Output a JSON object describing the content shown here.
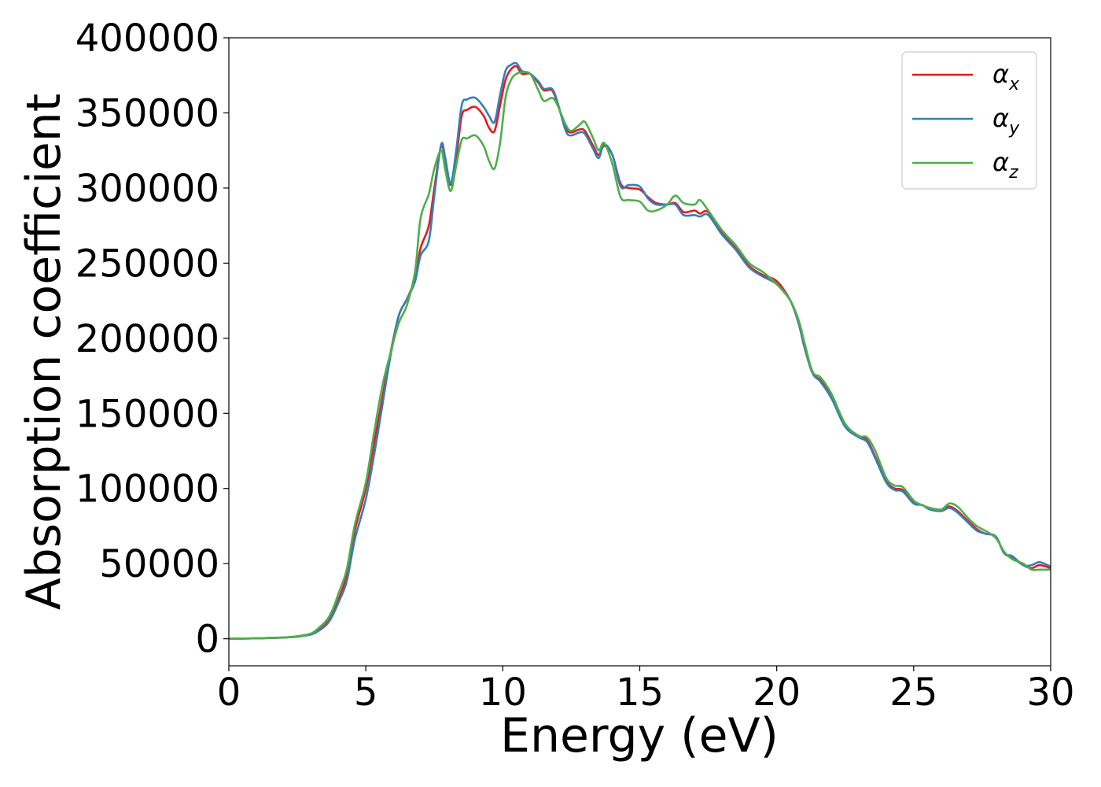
{
  "chart_data": {
    "type": "line",
    "xlabel": "Energy (eV)",
    "ylabel": "Absorption coefficient",
    "xlim": [
      0,
      30
    ],
    "ylim": [
      -18000,
      400000
    ],
    "xticks": [
      0,
      5,
      10,
      15,
      20,
      25,
      30
    ],
    "yticks": [
      0,
      50000,
      100000,
      150000,
      200000,
      250000,
      300000,
      350000,
      400000
    ],
    "grid": false,
    "legend_position": "top-right",
    "series": [
      {
        "name": "α_x",
        "label_base": "α",
        "label_sub": "x",
        "color": "#e41a1c",
        "x": [
          0,
          1,
          2,
          2.5,
          3,
          3.3,
          3.6,
          3.8,
          4.0,
          4.3,
          4.6,
          5.0,
          5.3,
          5.6,
          5.9,
          6.2,
          6.5,
          6.8,
          7.0,
          7.3,
          7.5,
          7.75,
          7.9,
          8.1,
          8.3,
          8.5,
          8.7,
          9.0,
          9.3,
          9.5,
          9.7,
          9.9,
          10.1,
          10.3,
          10.5,
          10.7,
          11.0,
          11.3,
          11.5,
          11.8,
          12.0,
          12.3,
          12.5,
          12.8,
          13.0,
          13.3,
          13.5,
          13.7,
          14.0,
          14.3,
          14.6,
          15.0,
          15.3,
          15.6,
          16.0,
          16.3,
          16.6,
          17.0,
          17.2,
          17.5,
          18.0,
          18.5,
          19.0,
          19.5,
          20.0,
          20.5,
          20.8,
          21.0,
          21.3,
          21.6,
          22.0,
          22.5,
          23.0,
          23.3,
          23.6,
          24.0,
          24.3,
          24.6,
          25.0,
          25.3,
          25.6,
          26.0,
          26.3,
          26.6,
          27.0,
          27.3,
          27.6,
          28.0,
          28.3,
          28.6,
          29.0,
          29.3,
          29.6,
          30.0
        ],
        "y": [
          0,
          300,
          800,
          1500,
          3000,
          6000,
          11000,
          17000,
          26000,
          42000,
          72000,
          100000,
          130000,
          160000,
          190000,
          215000,
          226000,
          240000,
          260000,
          275000,
          300000,
          328000,
          318000,
          302000,
          320000,
          348000,
          352000,
          354000,
          348000,
          340000,
          338000,
          355000,
          372000,
          379000,
          381000,
          376000,
          376000,
          370000,
          365000,
          365000,
          356000,
          340000,
          337000,
          339000,
          338000,
          328000,
          322000,
          328000,
          322000,
          303000,
          300000,
          299000,
          294000,
          290000,
          289000,
          290000,
          284000,
          285000,
          283000,
          284000,
          270000,
          260000,
          248000,
          242000,
          238000,
          225000,
          210000,
          195000,
          177000,
          172000,
          161000,
          142000,
          135000,
          132000,
          121000,
          105000,
          100000,
          99000,
          91000,
          89000,
          87000,
          86000,
          88000,
          85000,
          78000,
          73000,
          70000,
          68000,
          57000,
          54000,
          49000,
          47000,
          49000,
          47000
        ]
      },
      {
        "name": "α_y",
        "label_base": "α",
        "label_sub": "y",
        "color": "#377eb8",
        "x": [
          0,
          1,
          2,
          2.5,
          3,
          3.3,
          3.6,
          3.8,
          4.0,
          4.3,
          4.6,
          5.0,
          5.3,
          5.6,
          5.9,
          6.2,
          6.5,
          6.8,
          7.0,
          7.3,
          7.5,
          7.75,
          7.9,
          8.1,
          8.3,
          8.5,
          8.7,
          9.0,
          9.3,
          9.5,
          9.7,
          9.9,
          10.1,
          10.3,
          10.5,
          10.7,
          11.0,
          11.3,
          11.5,
          11.8,
          12.0,
          12.3,
          12.5,
          12.8,
          13.0,
          13.3,
          13.5,
          13.7,
          14.0,
          14.3,
          14.6,
          15.0,
          15.3,
          15.6,
          16.0,
          16.3,
          16.6,
          17.0,
          17.2,
          17.5,
          18.0,
          18.5,
          19.0,
          19.5,
          20.0,
          20.5,
          20.8,
          21.0,
          21.3,
          21.6,
          22.0,
          22.5,
          23.0,
          23.3,
          23.6,
          24.0,
          24.3,
          24.6,
          25.0,
          25.3,
          25.6,
          26.0,
          26.3,
          26.6,
          27.0,
          27.3,
          27.6,
          28.0,
          28.3,
          28.6,
          29.0,
          29.3,
          29.6,
          30.0
        ],
        "y": [
          0,
          300,
          800,
          1400,
          2800,
          5500,
          10000,
          16000,
          24000,
          38000,
          66000,
          93000,
          122000,
          155000,
          188000,
          215000,
          226000,
          238000,
          255000,
          265000,
          295000,
          329000,
          320000,
          303000,
          325000,
          355000,
          359000,
          360000,
          354000,
          348000,
          344000,
          362000,
          378000,
          382000,
          383000,
          378000,
          376000,
          371000,
          366000,
          366000,
          357000,
          338000,
          335000,
          337000,
          336000,
          326000,
          320000,
          329000,
          322000,
          301000,
          302000,
          301000,
          293000,
          289000,
          289000,
          289000,
          282000,
          282000,
          281000,
          282000,
          269000,
          259000,
          247000,
          241000,
          236000,
          225000,
          210000,
          195000,
          177000,
          171000,
          160000,
          141000,
          134000,
          131000,
          120000,
          104000,
          99000,
          98000,
          90000,
          89000,
          86000,
          85000,
          87000,
          84000,
          77000,
          72000,
          70000,
          68000,
          57000,
          55000,
          49000,
          49000,
          51000,
          48000
        ]
      },
      {
        "name": "α_z",
        "label_base": "α",
        "label_sub": "z",
        "color": "#4daf4a",
        "x": [
          0,
          1,
          2,
          2.5,
          3,
          3.3,
          3.6,
          3.8,
          4.0,
          4.3,
          4.6,
          5.0,
          5.3,
          5.6,
          5.9,
          6.2,
          6.5,
          6.8,
          7.0,
          7.3,
          7.5,
          7.75,
          7.9,
          8.1,
          8.3,
          8.5,
          8.7,
          9.0,
          9.3,
          9.5,
          9.7,
          9.9,
          10.1,
          10.3,
          10.5,
          10.7,
          11.0,
          11.3,
          11.5,
          11.8,
          12.0,
          12.3,
          12.5,
          12.8,
          13.0,
          13.3,
          13.5,
          13.7,
          14.0,
          14.3,
          14.6,
          15.0,
          15.3,
          15.6,
          16.0,
          16.3,
          16.6,
          17.0,
          17.2,
          17.5,
          18.0,
          18.5,
          19.0,
          19.5,
          20.0,
          20.5,
          20.8,
          21.0,
          21.3,
          21.6,
          22.0,
          22.5,
          23.0,
          23.3,
          23.6,
          24.0,
          24.3,
          24.6,
          25.0,
          25.3,
          25.6,
          26.0,
          26.3,
          26.6,
          27.0,
          27.3,
          27.6,
          28.0,
          28.3,
          28.6,
          29.0,
          29.3,
          29.6,
          30.0
        ],
        "y": [
          0,
          300,
          900,
          1700,
          3500,
          7500,
          13000,
          20000,
          30000,
          46000,
          76000,
          104000,
          137000,
          168000,
          190000,
          210000,
          222000,
          245000,
          280000,
          296000,
          313000,
          325000,
          312000,
          298000,
          315000,
          332000,
          333000,
          335000,
          328000,
          318000,
          313000,
          330000,
          360000,
          372000,
          376000,
          377000,
          376000,
          365000,
          358000,
          360000,
          355000,
          342000,
          338000,
          342000,
          344000,
          333000,
          325000,
          330000,
          316000,
          294000,
          292000,
          291000,
          285000,
          285000,
          289000,
          295000,
          290000,
          289000,
          292000,
          285000,
          272000,
          262000,
          250000,
          244000,
          236000,
          225000,
          212000,
          198000,
          178000,
          174000,
          163000,
          143000,
          135000,
          134000,
          125000,
          107000,
          102000,
          101000,
          92000,
          89000,
          87000,
          86000,
          90000,
          88000,
          80000,
          75000,
          72000,
          67000,
          58000,
          53000,
          50000,
          46000,
          46000,
          46000
        ]
      }
    ]
  }
}
